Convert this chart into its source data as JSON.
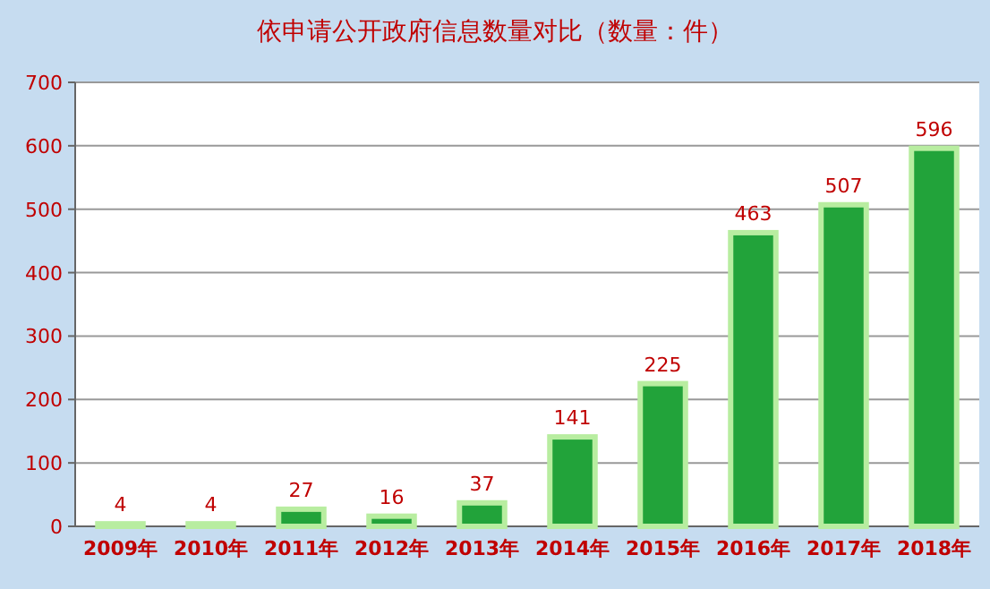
{
  "chart_data": {
    "type": "bar",
    "title": "依申请公开政府信息数量对比（数量：件）",
    "categories": [
      "2009年",
      "2010年",
      "2011年",
      "2012年",
      "2013年",
      "2014年",
      "2015年",
      "2016年",
      "2017年",
      "2018年"
    ],
    "values": [
      4,
      4,
      27,
      16,
      37,
      141,
      225,
      463,
      507,
      596
    ],
    "color": "#22a33a",
    "ylim": [
      0,
      700
    ],
    "yticks": [
      0,
      100,
      200,
      300,
      400,
      500,
      600,
      700
    ],
    "grid": "y",
    "data_labels": true
  }
}
